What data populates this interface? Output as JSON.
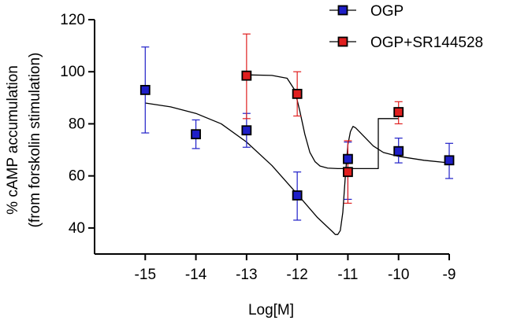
{
  "chart_data": {
    "type": "scatter",
    "title": "",
    "xlabel": "Log[M]",
    "ylabel": [
      "% cAMP accumulation",
      "(from forskolin stimulation)"
    ],
    "xlim": [
      -16,
      -9
    ],
    "ylim": [
      30,
      120
    ],
    "xticks": [
      -15,
      -14,
      -13,
      -12,
      -11,
      -10,
      -9
    ],
    "yticks": [
      40,
      60,
      80,
      100,
      120
    ],
    "grid": false,
    "legend_position": "top-right",
    "series": [
      {
        "name": "OGP",
        "color": "#1f1fc8",
        "x": [
          -15,
          -14,
          -13,
          -12,
          -11,
          -10,
          -9
        ],
        "y": [
          93,
          76,
          77.5,
          52.5,
          66.5,
          69.5,
          66
        ],
        "err_low": [
          76.5,
          70.5,
          71,
          43,
          51,
          65,
          59
        ],
        "err_high": [
          109.5,
          81.5,
          84,
          61.5,
          73,
          74.5,
          72.5
        ]
      },
      {
        "name": "OGP+SR144528",
        "color": "#e01f1f",
        "x": [
          -13,
          -12,
          -11,
          -10
        ],
        "y": [
          98.5,
          91.5,
          61.5,
          84.5
        ],
        "err_low": [
          82,
          83,
          49.5,
          80
        ],
        "err_high": [
          114.5,
          100,
          73.5,
          88.5
        ]
      }
    ],
    "fit_curves": [
      {
        "series": "OGP",
        "x": [
          -15,
          -14.5,
          -14,
          -13.5,
          -13,
          -12.5,
          -12,
          -11.6,
          -11.3,
          -11.25,
          -11.2,
          -11.15,
          -11.1,
          -11.05,
          -11.0,
          -10.95,
          -10.9,
          -10.85,
          -10.8,
          -10.7,
          -10.6,
          -10.5,
          -10.3,
          -10,
          -9.5,
          -9
        ],
        "y": [
          88,
          86.5,
          84,
          80,
          73,
          64,
          53,
          44,
          38.5,
          37.5,
          37.5,
          39,
          46,
          60,
          72,
          77,
          79,
          78.5,
          77.5,
          75.5,
          73.5,
          71.5,
          69,
          67.5,
          66,
          65
        ]
      },
      {
        "series": "OGP+SR144528",
        "x": [
          -13,
          -12.5,
          -12.2,
          -12.05,
          -11.95,
          -11.85,
          -11.75,
          -11.65,
          -11.55,
          -11.4,
          -11.2,
          -11.0,
          -10.8,
          -10.6,
          -10.4,
          -10.4,
          -10.2,
          -10
        ],
        "y": [
          98.8,
          98.6,
          97.5,
          93,
          85,
          76,
          69,
          65.5,
          63.8,
          63,
          62.8,
          62.8,
          62.8,
          62.8,
          62.8,
          82,
          82,
          82
        ]
      }
    ]
  }
}
